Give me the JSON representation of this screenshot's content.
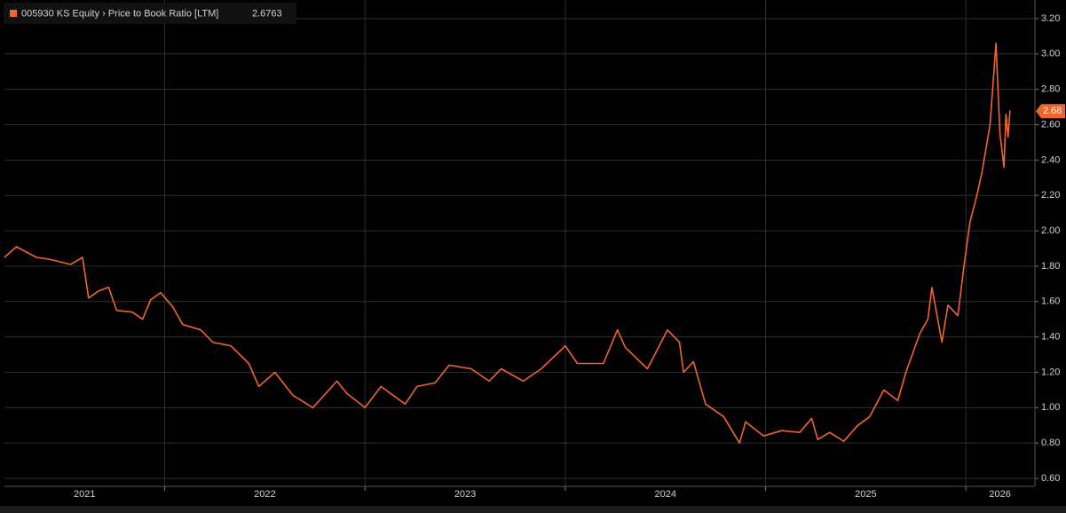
{
  "chart_data": {
    "type": "line",
    "x": [
      2021.2,
      2021.26,
      2021.36,
      2021.42,
      2021.53,
      2021.59,
      2021.62,
      2021.67,
      2021.72,
      2021.76,
      2021.84,
      2021.89,
      2021.93,
      2021.98,
      2022.04,
      2022.09,
      2022.18,
      2022.24,
      2022.33,
      2022.42,
      2022.47,
      2022.55,
      2022.64,
      2022.74,
      2022.86,
      2022.91,
      2023.0,
      2023.08,
      2023.2,
      2023.26,
      2023.35,
      2023.42,
      2023.53,
      2023.62,
      2023.68,
      2023.79,
      2023.88,
      2024.0,
      2024.06,
      2024.19,
      2024.26,
      2024.3,
      2024.41,
      2024.51,
      2024.57,
      2024.59,
      2024.64,
      2024.7,
      2024.79,
      2024.87,
      2024.9,
      2024.99,
      2025.08,
      2025.17,
      2025.23,
      2025.26,
      2025.32,
      2025.39,
      2025.46,
      2025.52,
      2025.59,
      2025.66,
      2025.7,
      2025.77,
      2025.81,
      2025.83,
      2025.88,
      2025.91,
      2025.96,
      2025.99,
      2026.02,
      2026.05,
      2026.08,
      2026.12,
      2026.15,
      2026.17,
      2026.19,
      2026.2,
      2026.21,
      2026.22
    ],
    "series": [
      {
        "name": "005930 KS Equity › Price to Book Ratio [LTM]",
        "color": "#f0642d",
        "values": [
          1.85,
          1.91,
          1.85,
          1.84,
          1.81,
          1.85,
          1.62,
          1.66,
          1.68,
          1.55,
          1.54,
          1.5,
          1.61,
          1.65,
          1.57,
          1.47,
          1.44,
          1.37,
          1.35,
          1.25,
          1.12,
          1.2,
          1.07,
          1.0,
          1.15,
          1.08,
          1.0,
          1.12,
          1.02,
          1.12,
          1.14,
          1.24,
          1.22,
          1.15,
          1.22,
          1.15,
          1.22,
          1.35,
          1.25,
          1.25,
          1.44,
          1.34,
          1.22,
          1.44,
          1.37,
          1.2,
          1.26,
          1.02,
          0.95,
          0.8,
          0.92,
          0.84,
          0.87,
          0.86,
          0.94,
          0.82,
          0.86,
          0.81,
          0.9,
          0.95,
          1.1,
          1.04,
          1.2,
          1.42,
          1.5,
          1.68,
          1.37,
          1.58,
          1.52,
          1.8,
          2.05,
          2.18,
          2.33,
          2.6,
          3.06,
          2.55,
          2.36,
          2.66,
          2.53,
          2.68
        ],
        "last_value": 2.6763,
        "last_value_label": "2.68"
      }
    ],
    "xlim": [
      2021.2,
      2026.34
    ],
    "xticks": [
      2021,
      2022,
      2023,
      2024,
      2025,
      2026
    ],
    "ylim": [
      0.555,
      3.265
    ],
    "yticks": [
      {
        "value": 0.6,
        "label": "0.60"
      },
      {
        "value": 0.8,
        "label": "0.80"
      },
      {
        "value": 1.0,
        "label": "1.00"
      },
      {
        "value": 1.2,
        "label": "1.20"
      },
      {
        "value": 1.4,
        "label": "1.40"
      },
      {
        "value": 1.6,
        "label": "1.60"
      },
      {
        "value": 1.8,
        "label": "1.80"
      },
      {
        "value": 2.0,
        "label": "2.00"
      },
      {
        "value": 2.2,
        "label": "2.20"
      },
      {
        "value": 2.4,
        "label": "2.40"
      },
      {
        "value": 2.6,
        "label": "2.60"
      },
      {
        "value": 2.8,
        "label": "2.80"
      },
      {
        "value": 3.0,
        "label": "3.00"
      },
      {
        "value": 3.2,
        "label": "3.20"
      }
    ],
    "grid": true
  }
}
